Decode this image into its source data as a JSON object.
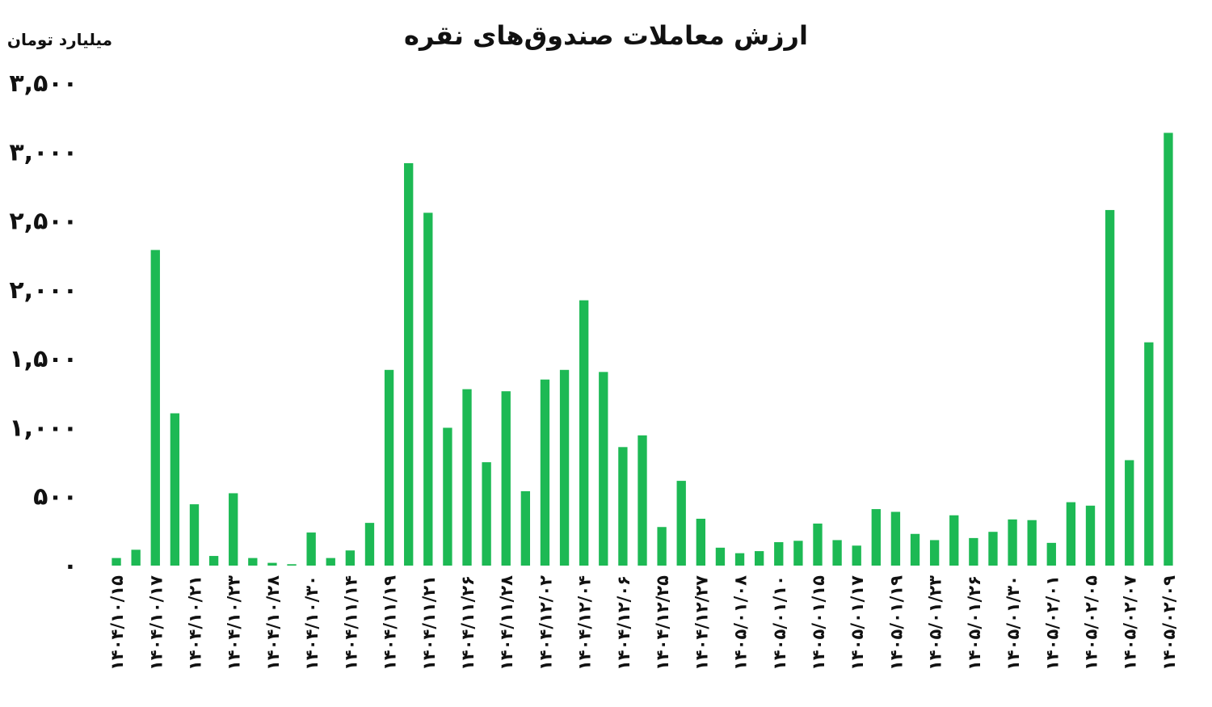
{
  "chart_data": {
    "type": "bar",
    "title": "ارزش معاملات صندوق‌های نقره",
    "ylabel": "میلیارد تومان",
    "xlabel": "",
    "ylim": [
      0,
      3500
    ],
    "yticks": [
      0,
      500,
      1000,
      1500,
      2000,
      2500,
      3000,
      3500
    ],
    "ytick_labels": [
      "۰",
      "۵۰۰",
      "۱,۰۰۰",
      "۱,۵۰۰",
      "۲,۰۰۰",
      "۲,۵۰۰",
      "۳,۰۰۰",
      "۳,۵۰۰"
    ],
    "grid": false,
    "bar_color": "#1DB954",
    "categories": [
      "۱۴۰۴/۱۰/۱۵",
      "",
      "۱۴۰۴/۱۰/۱۷",
      "",
      "۱۴۰۴/۱۰/۲۱",
      "",
      "۱۴۰۴/۱۰/۲۳",
      "",
      "۱۴۰۴/۱۰/۲۸",
      "",
      "۱۴۰۴/۱۰/۳۰",
      "",
      "۱۴۰۴/۱۱/۱۴",
      "",
      "۱۴۰۴/۱۱/۱۹",
      "",
      "۱۴۰۴/۱۱/۲۱",
      "",
      "۱۴۰۴/۱۱/۲۶",
      "",
      "۱۴۰۴/۱۱/۲۸",
      "",
      "۱۴۰۴/۱۲/۰۲",
      "",
      "۱۴۰۴/۱۲/۰۴",
      "",
      "۱۴۰۴/۱۲/۰۶",
      "",
      "۱۴۰۴/۱۲/۲۵",
      "",
      "۱۴۰۴/۱۲/۲۷",
      "",
      "۱۴۰۵/۰۱/۰۸",
      "",
      "۱۴۰۵/۰۱/۱۰",
      "",
      "۱۴۰۵/۰۱/۱۵",
      "",
      "۱۴۰۵/۰۱/۱۷",
      "",
      "۱۴۰۵/۰۱/۱۹",
      "",
      "۱۴۰۵/۰۱/۲۳",
      "",
      "۱۴۰۵/۰۱/۲۶",
      "",
      "۱۴۰۵/۰۱/۳۰",
      "",
      "۱۴۰۵/۰۲/۰۱",
      "",
      "۱۴۰۵/۰۲/۰۵",
      "",
      "۱۴۰۵/۰۲/۰۷",
      "",
      "۱۴۰۵/۰۲/۰۹"
    ],
    "values": [
      55,
      115,
      2290,
      1105,
      445,
      70,
      525,
      55,
      20,
      10,
      240,
      55,
      110,
      310,
      1420,
      2920,
      2560,
      1000,
      1280,
      750,
      1265,
      540,
      1350,
      1420,
      1925,
      1405,
      860,
      945,
      280,
      615,
      340,
      130,
      90,
      105,
      170,
      180,
      305,
      185,
      145,
      410,
      390,
      230,
      185,
      365,
      200,
      245,
      335,
      330,
      165,
      460,
      435,
      2580,
      765,
      1620,
      3140
    ]
  }
}
